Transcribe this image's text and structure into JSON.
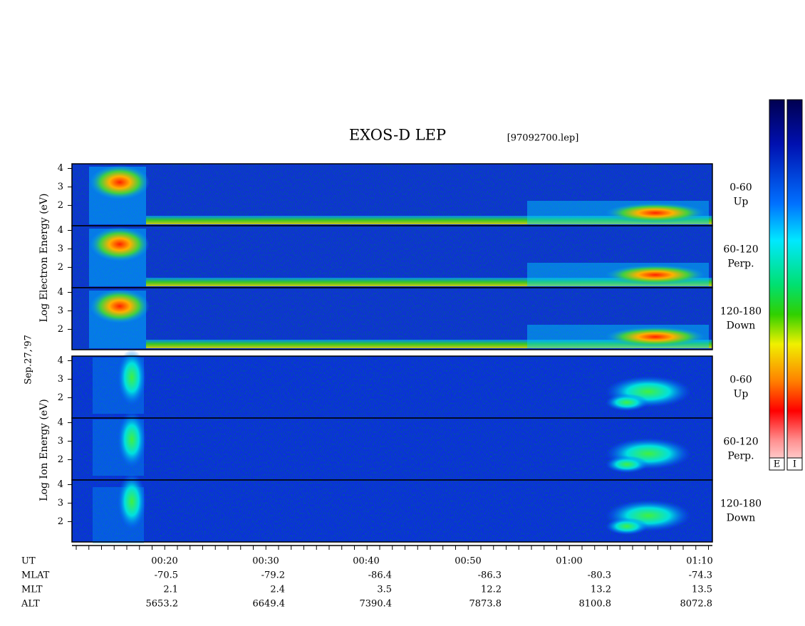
{
  "title": "EXOS-D LEP",
  "file": "[97092700.lep]",
  "y_label_electron": "Log  Electron  Energy  (eV)",
  "y_label_ion": "Log  Ion  Energy  (eV)",
  "date": "Sep.27,'97",
  "ylim": [
    0.9,
    4.25
  ],
  "yticks": [
    2,
    3,
    4
  ],
  "panels": [
    {
      "angle": "0-60",
      "dir": "Up"
    },
    {
      "angle": "60-120",
      "dir": "Perp."
    },
    {
      "angle": "120-180",
      "dir": "Down"
    },
    {
      "angle": "0-60",
      "dir": "Up"
    },
    {
      "angle": "60-120",
      "dir": "Perp."
    },
    {
      "angle": "120-180",
      "dir": "Down"
    }
  ],
  "table": {
    "rows": [
      {
        "name": "UT",
        "values": [
          "00:20",
          "00:30",
          "00:40",
          "00:50",
          "01:00",
          "01:10"
        ]
      },
      {
        "name": "MLAT",
        "values": [
          -70.5,
          -79.2,
          -86.4,
          -86.3,
          -80.3,
          -74.3
        ]
      },
      {
        "name": "MLT",
        "values": [
          2.1,
          2.4,
          3.5,
          12.2,
          13.2,
          13.5
        ]
      },
      {
        "name": "ALT",
        "values": [
          5653.2,
          6649.4,
          7390.4,
          7873.8,
          8100.8,
          8072.8
        ]
      }
    ]
  },
  "colorbar": {
    "labels": [
      "E",
      "I"
    ]
  }
}
